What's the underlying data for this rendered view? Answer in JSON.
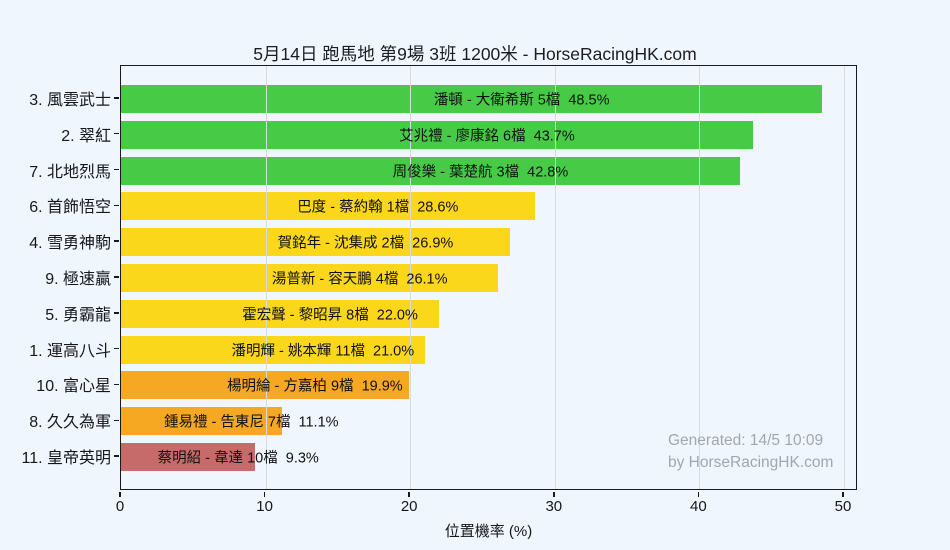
{
  "title": "5月14日 跑馬地 第9場 3班 1200米 - HorseRacingHK.com",
  "watermark": {
    "line1": "Generated: 14/5 10:09",
    "line2": "by HorseRacingHK.com"
  },
  "colors": {
    "background": "#EFF6FD",
    "green": "#47CB47",
    "yellow": "#FBD71C",
    "orange": "#F7A823",
    "red": "#C76A6A",
    "grid": "#D6DADF",
    "axis": "#17191D",
    "bar_text": "#101114",
    "watermark_text": "#9FA8B2"
  },
  "chart_data": {
    "type": "bar",
    "orientation": "horizontal",
    "title": "5月14日 跑馬地 第9場 3班 1200米 - HorseRacingHK.com",
    "xlabel": "位置機率 (%)",
    "ylabel": "",
    "xlim": [
      0,
      50.9
    ],
    "xticks": [
      0,
      10,
      20,
      30,
      40,
      50
    ],
    "grid": true,
    "legend": false,
    "categories": [
      "3. 風雲武士",
      "2. 翠紅",
      "7. 北地烈馬",
      "6. 首飾悟空",
      "4. 雪勇神駒",
      "9. 極速贏",
      "5. 勇霸龍",
      "1. 運高八斗",
      "10. 富心星",
      "8. 久久為軍",
      "11. 皇帝英明"
    ],
    "values": [
      48.5,
      43.7,
      42.8,
      28.6,
      26.9,
      26.1,
      22.0,
      21.0,
      19.9,
      11.1,
      9.3
    ],
    "bars": [
      {
        "category": "3. 風雲武士",
        "jockey": "潘頓",
        "trainer": "大衛希斯",
        "draw": "5檔",
        "pct": 48.5,
        "bar_label": "潘頓 - 大衛希斯 5檔  48.5%",
        "color_key": "green"
      },
      {
        "category": "2. 翠紅",
        "jockey": "艾兆禮",
        "trainer": "廖康銘",
        "draw": "6檔",
        "pct": 43.7,
        "bar_label": "艾兆禮 - 廖康銘 6檔  43.7%",
        "color_key": "green"
      },
      {
        "category": "7. 北地烈馬",
        "jockey": "周俊樂",
        "trainer": "葉楚航",
        "draw": "3檔",
        "pct": 42.8,
        "bar_label": "周俊樂 - 葉楚航 3檔  42.8%",
        "color_key": "green"
      },
      {
        "category": "6. 首飾悟空",
        "jockey": "巴度",
        "trainer": "蔡約翰",
        "draw": "1檔",
        "pct": 28.6,
        "bar_label": "巴度 - 蔡約翰 1檔  28.6%",
        "color_key": "yellow"
      },
      {
        "category": "4. 雪勇神駒",
        "jockey": "賀銘年",
        "trainer": "沈集成",
        "draw": "2檔",
        "pct": 26.9,
        "bar_label": "賀銘年 - 沈集成 2檔  26.9%",
        "color_key": "yellow"
      },
      {
        "category": "9. 極速贏",
        "jockey": "湯普新",
        "trainer": "容天鵬",
        "draw": "4檔",
        "pct": 26.1,
        "bar_label": "湯普新 - 容天鵬 4檔  26.1%",
        "color_key": "yellow"
      },
      {
        "category": "5. 勇霸龍",
        "jockey": "霍宏聲",
        "trainer": "黎昭昇",
        "draw": "8檔",
        "pct": 22.0,
        "bar_label": "霍宏聲 - 黎昭昇 8檔  22.0%",
        "color_key": "yellow"
      },
      {
        "category": "1. 運高八斗",
        "jockey": "潘明輝",
        "trainer": "姚本輝",
        "draw": "11檔",
        "pct": 21.0,
        "bar_label": "潘明輝 - 姚本輝 11檔  21.0%",
        "color_key": "yellow"
      },
      {
        "category": "10. 富心星",
        "jockey": "楊明綸",
        "trainer": "方嘉柏",
        "draw": "9檔",
        "pct": 19.9,
        "bar_label": "楊明綸 - 方嘉柏 9檔  19.9%",
        "color_key": "orange"
      },
      {
        "category": "8. 久久為軍",
        "jockey": "鍾易禮",
        "trainer": "告東尼",
        "draw": "7檔",
        "pct": 11.1,
        "bar_label": "鍾易禮 - 告東尼 7檔  11.1%",
        "color_key": "orange"
      },
      {
        "category": "11. 皇帝英明",
        "jockey": "蔡明紹",
        "trainer": "韋達",
        "draw": "10檔",
        "pct": 9.3,
        "bar_label": "蔡明紹 - 韋達 10檔  9.3%",
        "color_key": "red"
      }
    ]
  }
}
